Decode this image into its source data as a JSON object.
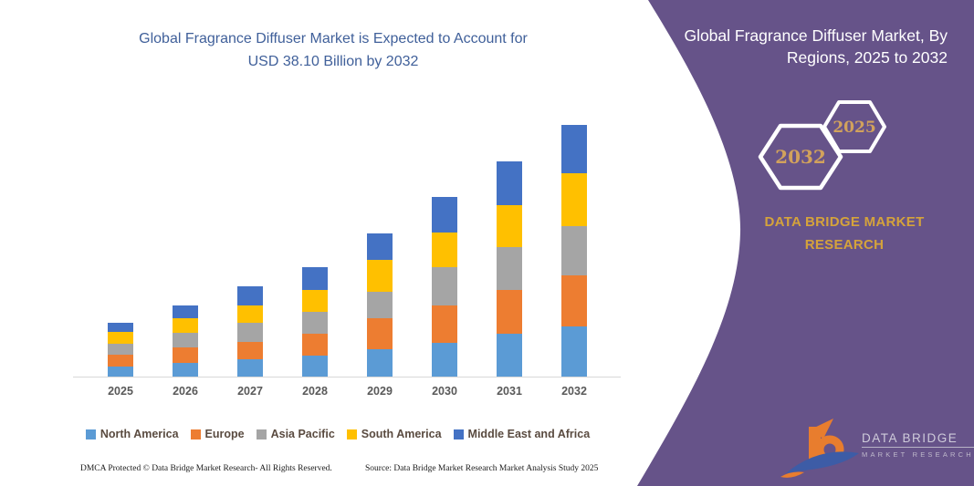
{
  "left_panel": {
    "title_line1": "Global Fragrance Diffuser Market is Expected to Account for",
    "title_line2": "USD 38.10 Billion by 2032",
    "footer_left": "DMCA Protected © Data Bridge Market Research-  All Rights Reserved.",
    "footer_right": "Source: Data Bridge Market Research  Market Analysis Study 2025"
  },
  "right_panel": {
    "title_line1": "Global Fragrance Diffuser Market, By",
    "title_line2": "Regions, 2025 to 2032",
    "hexagon_back_year": "2032",
    "hexagon_front_year": "2025",
    "brand_line1": "DATA BRIDGE MARKET",
    "brand_line2": "RESEARCH",
    "logo": {
      "text_primary": "DATA BRIDGE",
      "text_secondary": "MARKET RESEARCH"
    },
    "colors": {
      "panel_background": "#665389",
      "gold": "#D2A25C",
      "white": "#FFFFFF"
    }
  },
  "chart_data": {
    "type": "bar",
    "stacked": true,
    "title": "Global Fragrance Diffuser Market is Expected to Account for USD 38.10 Billion by 2032",
    "unit": "USD Billion",
    "categories": [
      "2025",
      "2026",
      "2027",
      "2028",
      "2029",
      "2030",
      "2031",
      "2032"
    ],
    "series": [
      {
        "name": "North America",
        "color": "#5B9BD5",
        "values": [
          1.5,
          2.1,
          2.6,
          3.2,
          4.1,
          5.1,
          6.5,
          7.6
        ]
      },
      {
        "name": "Europe",
        "color": "#ED7D31",
        "values": [
          1.8,
          2.3,
          2.6,
          3.3,
          4.7,
          5.7,
          6.6,
          7.7
        ]
      },
      {
        "name": "Asia Pacific",
        "color": "#A5A5A5",
        "values": [
          1.7,
          2.2,
          2.9,
          3.3,
          4.1,
          5.8,
          6.5,
          7.5
        ]
      },
      {
        "name": "South America",
        "color": "#FFC000",
        "values": [
          1.7,
          2.3,
          2.6,
          3.3,
          4.7,
          5.2,
          6.3,
          7.9
        ]
      },
      {
        "name": "Middle East and Africa",
        "color": "#4472C4",
        "values": [
          1.5,
          1.9,
          3.0,
          3.5,
          4.0,
          5.4,
          6.6,
          7.4
        ]
      }
    ],
    "annotated_total_2032": "USD 38.10 Billion",
    "y_axis_visible": false,
    "gridlines": false,
    "legend_position": "bottom"
  }
}
